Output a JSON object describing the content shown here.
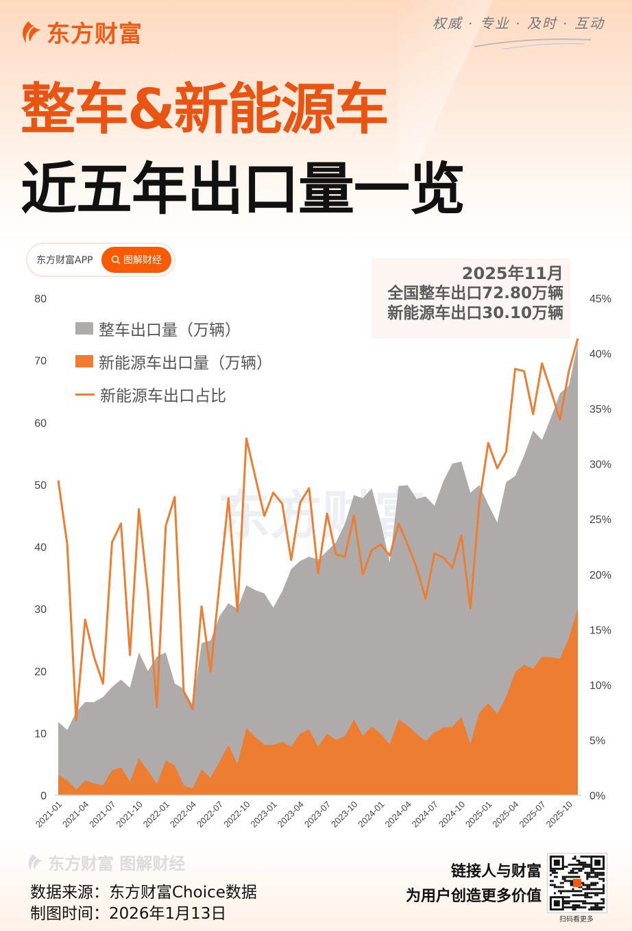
{
  "brand": {
    "logo_text": "东方财富",
    "slogan": "权威 · 专业 · 及时 · 互动"
  },
  "title": {
    "line1": "整车&新能源车",
    "line2": "近五年出口量一览"
  },
  "pill": {
    "left_label": "东方财富APP",
    "right_label": "图解财经"
  },
  "annotation": {
    "date": "2025年11月",
    "line1": "全国整车出口72.80万辆",
    "line2": "新能源车出口30.10万辆"
  },
  "watermark": "东方财富",
  "footer": {
    "watermark_text": "东方财富 图解财经",
    "source": "数据来源：东方财富Choice数据",
    "date": "制图时间：2026年1月13日",
    "slogan1": "链接人与财富",
    "slogan2": "为用户创造更多价值",
    "qr_caption": "扫码看更多"
  },
  "colors": {
    "brand": "#f05a14",
    "total": "#afabab",
    "nev": "#ed7d31",
    "ratio": "#ed7d31"
  },
  "chart_data": {
    "type": "area",
    "title": "整车&新能源车近五年出口量一览",
    "start_month": "2021-01",
    "x_tick_labels": [
      "2021-01",
      "2021-04",
      "2021-07",
      "2021-10",
      "2022-01",
      "2022-04",
      "2022-07",
      "2022-10",
      "2023-01",
      "2023-04",
      "2023-07",
      "2023-10",
      "2024-01",
      "2024-04",
      "2024-07",
      "2024-10",
      "2025-01",
      "2025-04",
      "2025-07",
      "2025-10"
    ],
    "y_left": {
      "min": 0,
      "max": 80,
      "ticks": [
        "0",
        "10",
        "20",
        "30",
        "40",
        "50",
        "60",
        "70",
        "80"
      ]
    },
    "y_right": {
      "min": 0,
      "max": 45,
      "ticks": [
        "0%",
        "5%",
        "10%",
        "15%",
        "20%",
        "25%",
        "30%",
        "35%",
        "40%",
        "45%"
      ]
    },
    "legend_position": "top-left",
    "series": [
      {
        "name": "整车出口量（万辆）",
        "type": "area",
        "values": [
          11.8,
          10.5,
          13.4,
          15.0,
          15.0,
          15.8,
          17.4,
          18.6,
          17.3,
          23.0,
          20.0,
          22.3,
          23.0,
          18.0,
          17.1,
          14.5,
          24.5,
          24.9,
          28.8,
          30.9,
          30.0,
          33.8,
          33.0,
          32.5,
          30.2,
          32.8,
          36.4,
          37.7,
          38.4,
          37.9,
          39.3,
          40.7,
          43.7,
          48.3,
          47.8,
          49.4,
          43.9,
          37.5,
          49.8,
          49.9,
          47.7,
          48.1,
          46.6,
          50.6,
          53.4,
          53.7,
          48.7,
          49.9,
          46.8,
          43.9,
          50.4,
          51.4,
          54.7,
          58.7,
          57.2,
          60.8,
          64.7,
          65.9,
          72.8
        ]
      },
      {
        "name": "新能源车出口量（万辆）",
        "type": "area",
        "values": [
          3.3,
          2.4,
          0.9,
          2.4,
          1.9,
          1.6,
          4.0,
          4.5,
          2.2,
          5.9,
          4.0,
          1.8,
          5.6,
          4.8,
          1.6,
          1.1,
          4.1,
          2.8,
          5.4,
          8.1,
          5.0,
          10.8,
          9.4,
          8.1,
          8.1,
          8.6,
          7.8,
          9.9,
          10.6,
          7.8,
          9.9,
          8.9,
          9.5,
          12.2,
          9.6,
          11.0,
          9.9,
          8.2,
          12.2,
          11.2,
          9.9,
          8.7,
          10.1,
          10.9,
          11.0,
          12.6,
          8.3,
          13.3,
          14.8,
          13.1,
          15.8,
          19.8,
          21.0,
          20.4,
          22.3,
          22.2,
          22.0,
          25.3,
          30.1
        ]
      },
      {
        "name": "新能源车出口占比",
        "type": "line",
        "axis": "right",
        "unit": "%",
        "values": [
          28.5,
          22.7,
          6.8,
          15.9,
          12.5,
          10.1,
          22.9,
          24.6,
          12.7,
          25.9,
          18.4,
          8.0,
          24.4,
          27.0,
          9.4,
          7.8,
          17.1,
          11.2,
          19.1,
          26.9,
          16.6,
          32.3,
          28.8,
          25.3,
          27.4,
          26.4,
          21.3,
          26.5,
          27.8,
          20.1,
          25.5,
          21.8,
          21.6,
          25.3,
          20.0,
          22.2,
          22.7,
          21.7,
          24.6,
          22.7,
          20.6,
          17.8,
          21.9,
          21.5,
          20.6,
          23.5,
          16.9,
          26.5,
          31.9,
          29.6,
          31.1,
          38.6,
          38.4,
          34.5,
          39.1,
          36.6,
          34.0,
          38.4,
          41.35
        ]
      }
    ]
  }
}
